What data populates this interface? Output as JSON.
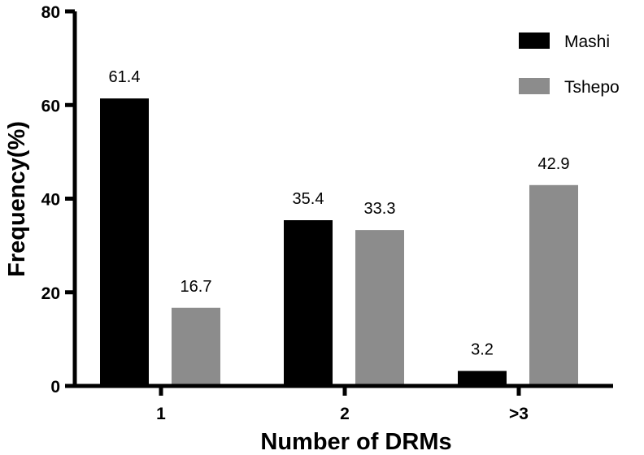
{
  "chart_data": {
    "type": "bar",
    "title": "",
    "xlabel": "Number of DRMs",
    "ylabel": "Frequency(%)",
    "categories": [
      "1",
      "2",
      ">3"
    ],
    "ylim": [
      0,
      80
    ],
    "yticks": [
      0,
      20,
      40,
      60,
      80
    ],
    "grid": false,
    "legend_position": "top-right",
    "series": [
      {
        "name": "Mashi",
        "color": "#000000",
        "values": [
          61.4,
          35.4,
          3.2
        ],
        "labels": [
          "61.4",
          "35.4",
          "3.2"
        ]
      },
      {
        "name": "Tshepo",
        "color": "#8c8c8c",
        "values": [
          16.7,
          33.3,
          42.9
        ],
        "labels": [
          "16.7",
          "33.3",
          "42.9"
        ]
      }
    ]
  }
}
